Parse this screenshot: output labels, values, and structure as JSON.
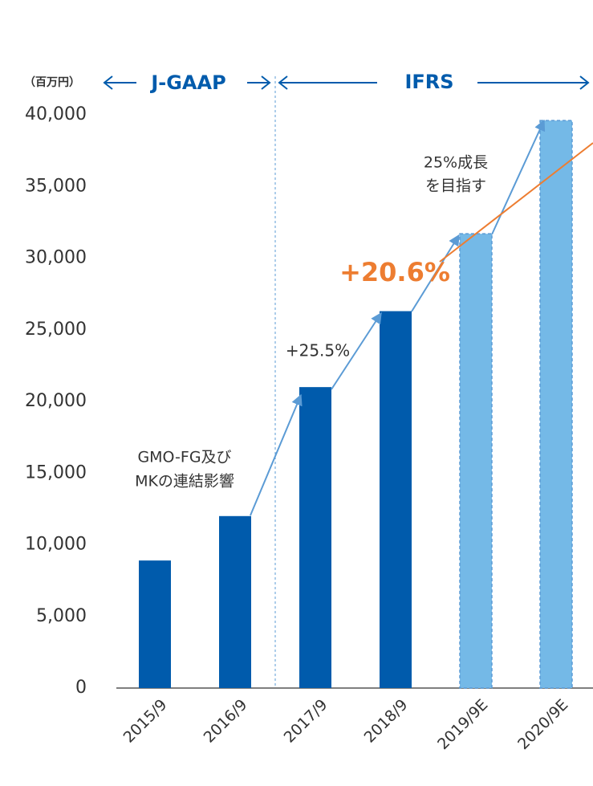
{
  "chart_data": {
    "type": "bar",
    "unit_label": "（百万円）",
    "period_labels": [
      "J-GAAP",
      "IFRS"
    ],
    "annotations": [
      "GMO-FG及び",
      "MKの連結影響",
      "+25.5%",
      "+20.6%",
      "25%成長",
      "を目指す"
    ],
    "categories": [
      "2015/9",
      "2016/9",
      "2017/9",
      "2018/9",
      "2019/9E",
      "2020/9E"
    ],
    "values": [
      8900,
      12000,
      21000,
      26300,
      31700,
      39600
    ],
    "colors": [
      "#005bac",
      "#005bac",
      "#005bac",
      "#005bac",
      "#74b9e7",
      "#74b9e7"
    ],
    "ylim": [
      0,
      40000
    ],
    "yticks": [
      0,
      {
        "value": 5000,
        "label": "5,000"
      },
      {
        "value": 10000,
        "label": "10,000"
      },
      {
        "value": 15000,
        "label": "15,000"
      },
      {
        "value": 20000,
        "label": "20,000"
      },
      {
        "value": 25000,
        "label": "25,000"
      },
      {
        "value": 30000,
        "label": "30,000"
      },
      {
        "value": 35000,
        "label": "35,000"
      },
      {
        "value": 40000,
        "label": "40,000"
      }
    ],
    "grid": false
  }
}
